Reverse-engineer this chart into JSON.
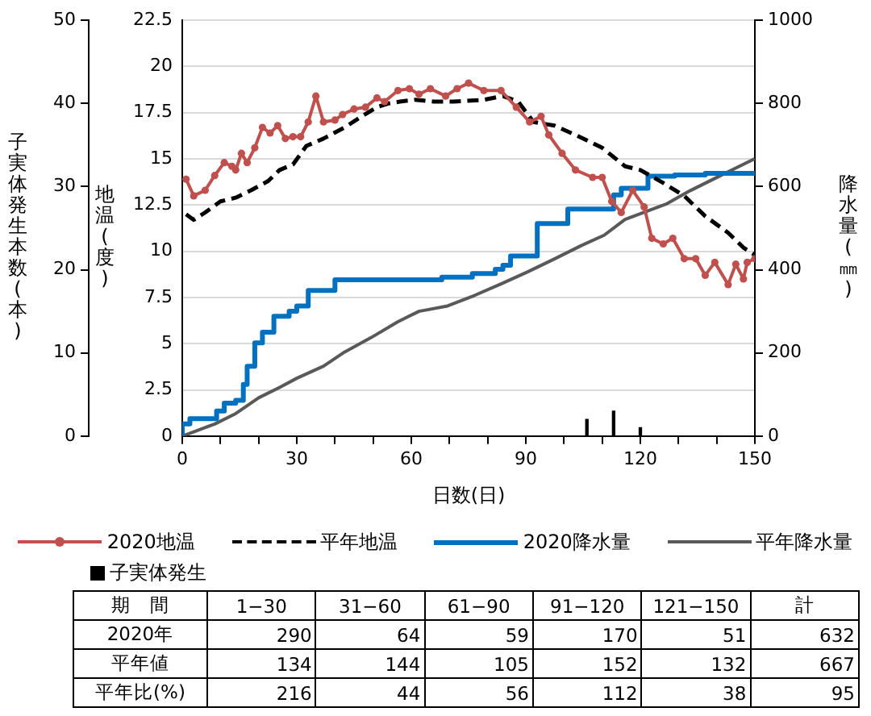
{
  "chart_data": [
    {
      "type": "line",
      "xlabel": "日数(日)",
      "ylabel": "地温(度)",
      "y2label": "降水量(㎜)",
      "y3label": "子実体発生本数(本)",
      "xlim": [
        0,
        150
      ],
      "xticks": [
        0,
        {
          "value": 10,
          "label": null
        },
        {
          "value": 20,
          "label": null
        },
        30,
        {
          "value": 40,
          "label": null
        },
        {
          "value": 50,
          "label": null
        },
        60,
        {
          "value": 70,
          "label": null
        },
        {
          "value": 80,
          "label": null
        },
        90,
        {
          "value": 100,
          "label": null
        },
        {
          "value": 110,
          "label": null
        },
        120,
        {
          "value": 130,
          "label": null
        },
        {
          "value": 140,
          "label": null
        },
        150
      ],
      "ylim": [
        0,
        22.5
      ],
      "yticks": [
        0,
        2.5,
        5,
        7.5,
        10,
        12.5,
        15,
        17.5,
        20,
        22.5
      ],
      "y2lim": [
        0,
        1000
      ],
      "y2ticks": [
        0,
        200,
        400,
        600,
        800,
        1000
      ],
      "y3lim": [
        0,
        50
      ],
      "y3ticks": [
        0,
        10,
        20,
        30,
        40,
        50
      ],
      "grid": "y",
      "legend": "bottom",
      "series": [
        {
          "name": "2020地温",
          "color": "#c0504d",
          "marker": "circle",
          "line_style": "solid",
          "x": [
            1,
            3,
            6,
            8.5,
            11,
            13,
            14,
            15.5,
            17,
            19,
            21,
            23,
            25,
            27,
            29,
            31,
            33,
            35,
            37,
            40,
            42,
            45,
            48,
            51,
            53,
            56.5,
            59.5,
            62,
            65,
            69,
            72,
            75,
            79,
            83.5,
            87.5,
            91,
            94,
            96,
            99.5,
            103,
            107.5,
            110,
            112.5,
            115,
            118,
            121,
            123,
            126,
            128.5,
            131.5,
            134.5,
            137,
            139.5,
            143,
            145,
            147,
            148,
            150
          ],
          "values": [
            13.9,
            13,
            13.3,
            14.1,
            14.8,
            14.6,
            14.4,
            15.3,
            14.8,
            15.6,
            16.7,
            16.4,
            16.8,
            16.1,
            16.2,
            16.2,
            17,
            18.4,
            17,
            17.1,
            17.4,
            17.7,
            17.8,
            18.3,
            18.1,
            18.7,
            18.8,
            18.5,
            18.8,
            18.4,
            18.8,
            19.1,
            18.7,
            18.7,
            17.8,
            17,
            17.3,
            16.3,
            15.3,
            14.4,
            14,
            14,
            12.7,
            12.1,
            13.3,
            12.4,
            10.7,
            10.4,
            10.7,
            9.6,
            9.6,
            8.7,
            9.4,
            8.2,
            9.3,
            8.5,
            9.4,
            9.6
          ]
        },
        {
          "name": "平年地温",
          "color": "#000000",
          "marker": "none",
          "line_style": "dashed",
          "x": [
            1,
            3,
            6,
            10,
            14,
            18,
            22.5,
            25.5,
            29,
            32.5,
            37,
            42.5,
            47,
            51,
            54,
            57,
            61,
            66,
            71,
            79,
            84,
            88,
            92,
            97.5,
            103,
            110,
            116,
            120,
            126,
            131.5,
            137,
            143,
            147,
            150
          ],
          "values": [
            12,
            11.7,
            12.1,
            12.7,
            12.9,
            13.3,
            13.8,
            14.4,
            14.7,
            15.7,
            16.1,
            16.7,
            17.3,
            17.8,
            18,
            18.1,
            18.2,
            18.1,
            18.1,
            18.2,
            18.4,
            18.1,
            17,
            16.8,
            16.3,
            15.6,
            14.6,
            14.4,
            13.7,
            13,
            11.9,
            11,
            10.2,
            9.8
          ]
        },
        {
          "name": "2020降水量",
          "type": "step",
          "axis": "y2",
          "color": "#0070c0",
          "marker": "none",
          "line_style": "solid",
          "x": [
            0,
            2,
            9,
            11,
            14,
            16,
            17,
            19,
            21,
            24,
            28,
            30,
            33,
            40,
            68,
            76,
            82,
            84,
            86,
            93,
            101,
            113,
            115,
            122,
            129,
            137,
            139,
            150
          ],
          "values": [
            0,
            29,
            42,
            60,
            79,
            86,
            124,
            168,
            224,
            250,
            288,
            300,
            313,
            350,
            376,
            382,
            391,
            401,
            411,
            433,
            511,
            546,
            580,
            596,
            625,
            628,
            632,
            632
          ]
        },
        {
          "name": "平年降水量",
          "axis": "y2",
          "color": "#595959",
          "marker": "none",
          "line_style": "solid",
          "x": [
            0,
            3,
            8.5,
            14,
            20,
            25.5,
            30,
            37,
            42.5,
            49.5,
            56.5,
            62,
            69.5,
            76.5,
            83.5,
            90.5,
            97.5,
            104.5,
            110.5,
            116,
            121.5,
            127,
            133,
            140,
            145.5,
            150
          ],
          "values": [
            0,
            10,
            29,
            54,
            92,
            117,
            139,
            168,
            202,
            237,
            275,
            300,
            313,
            338,
            366,
            395,
            426,
            458,
            483,
            521,
            540,
            559,
            590,
            622,
            647,
            667
          ]
        },
        {
          "name": "子実体発生",
          "type": "bar",
          "axis": "y3",
          "color": "#000000",
          "x": [
            106,
            113,
            120
          ],
          "values": [
            2,
            3,
            1
          ]
        }
      ]
    },
    {
      "type": "other",
      "data_labels": true,
      "ylabel": "期　間",
      "categories": [
        "1−30",
        "31−60",
        "61−90",
        "91−120",
        "121−150",
        "計"
      ],
      "series": [
        {
          "name": "2020年",
          "values": [
            290,
            64,
            59,
            170,
            51,
            632
          ]
        },
        {
          "name": "平年値",
          "values": [
            134,
            144,
            105,
            152,
            132,
            667
          ]
        },
        {
          "name": "平年比(%)",
          "values": [
            216,
            44,
            56,
            112,
            38,
            95
          ]
        }
      ]
    }
  ]
}
